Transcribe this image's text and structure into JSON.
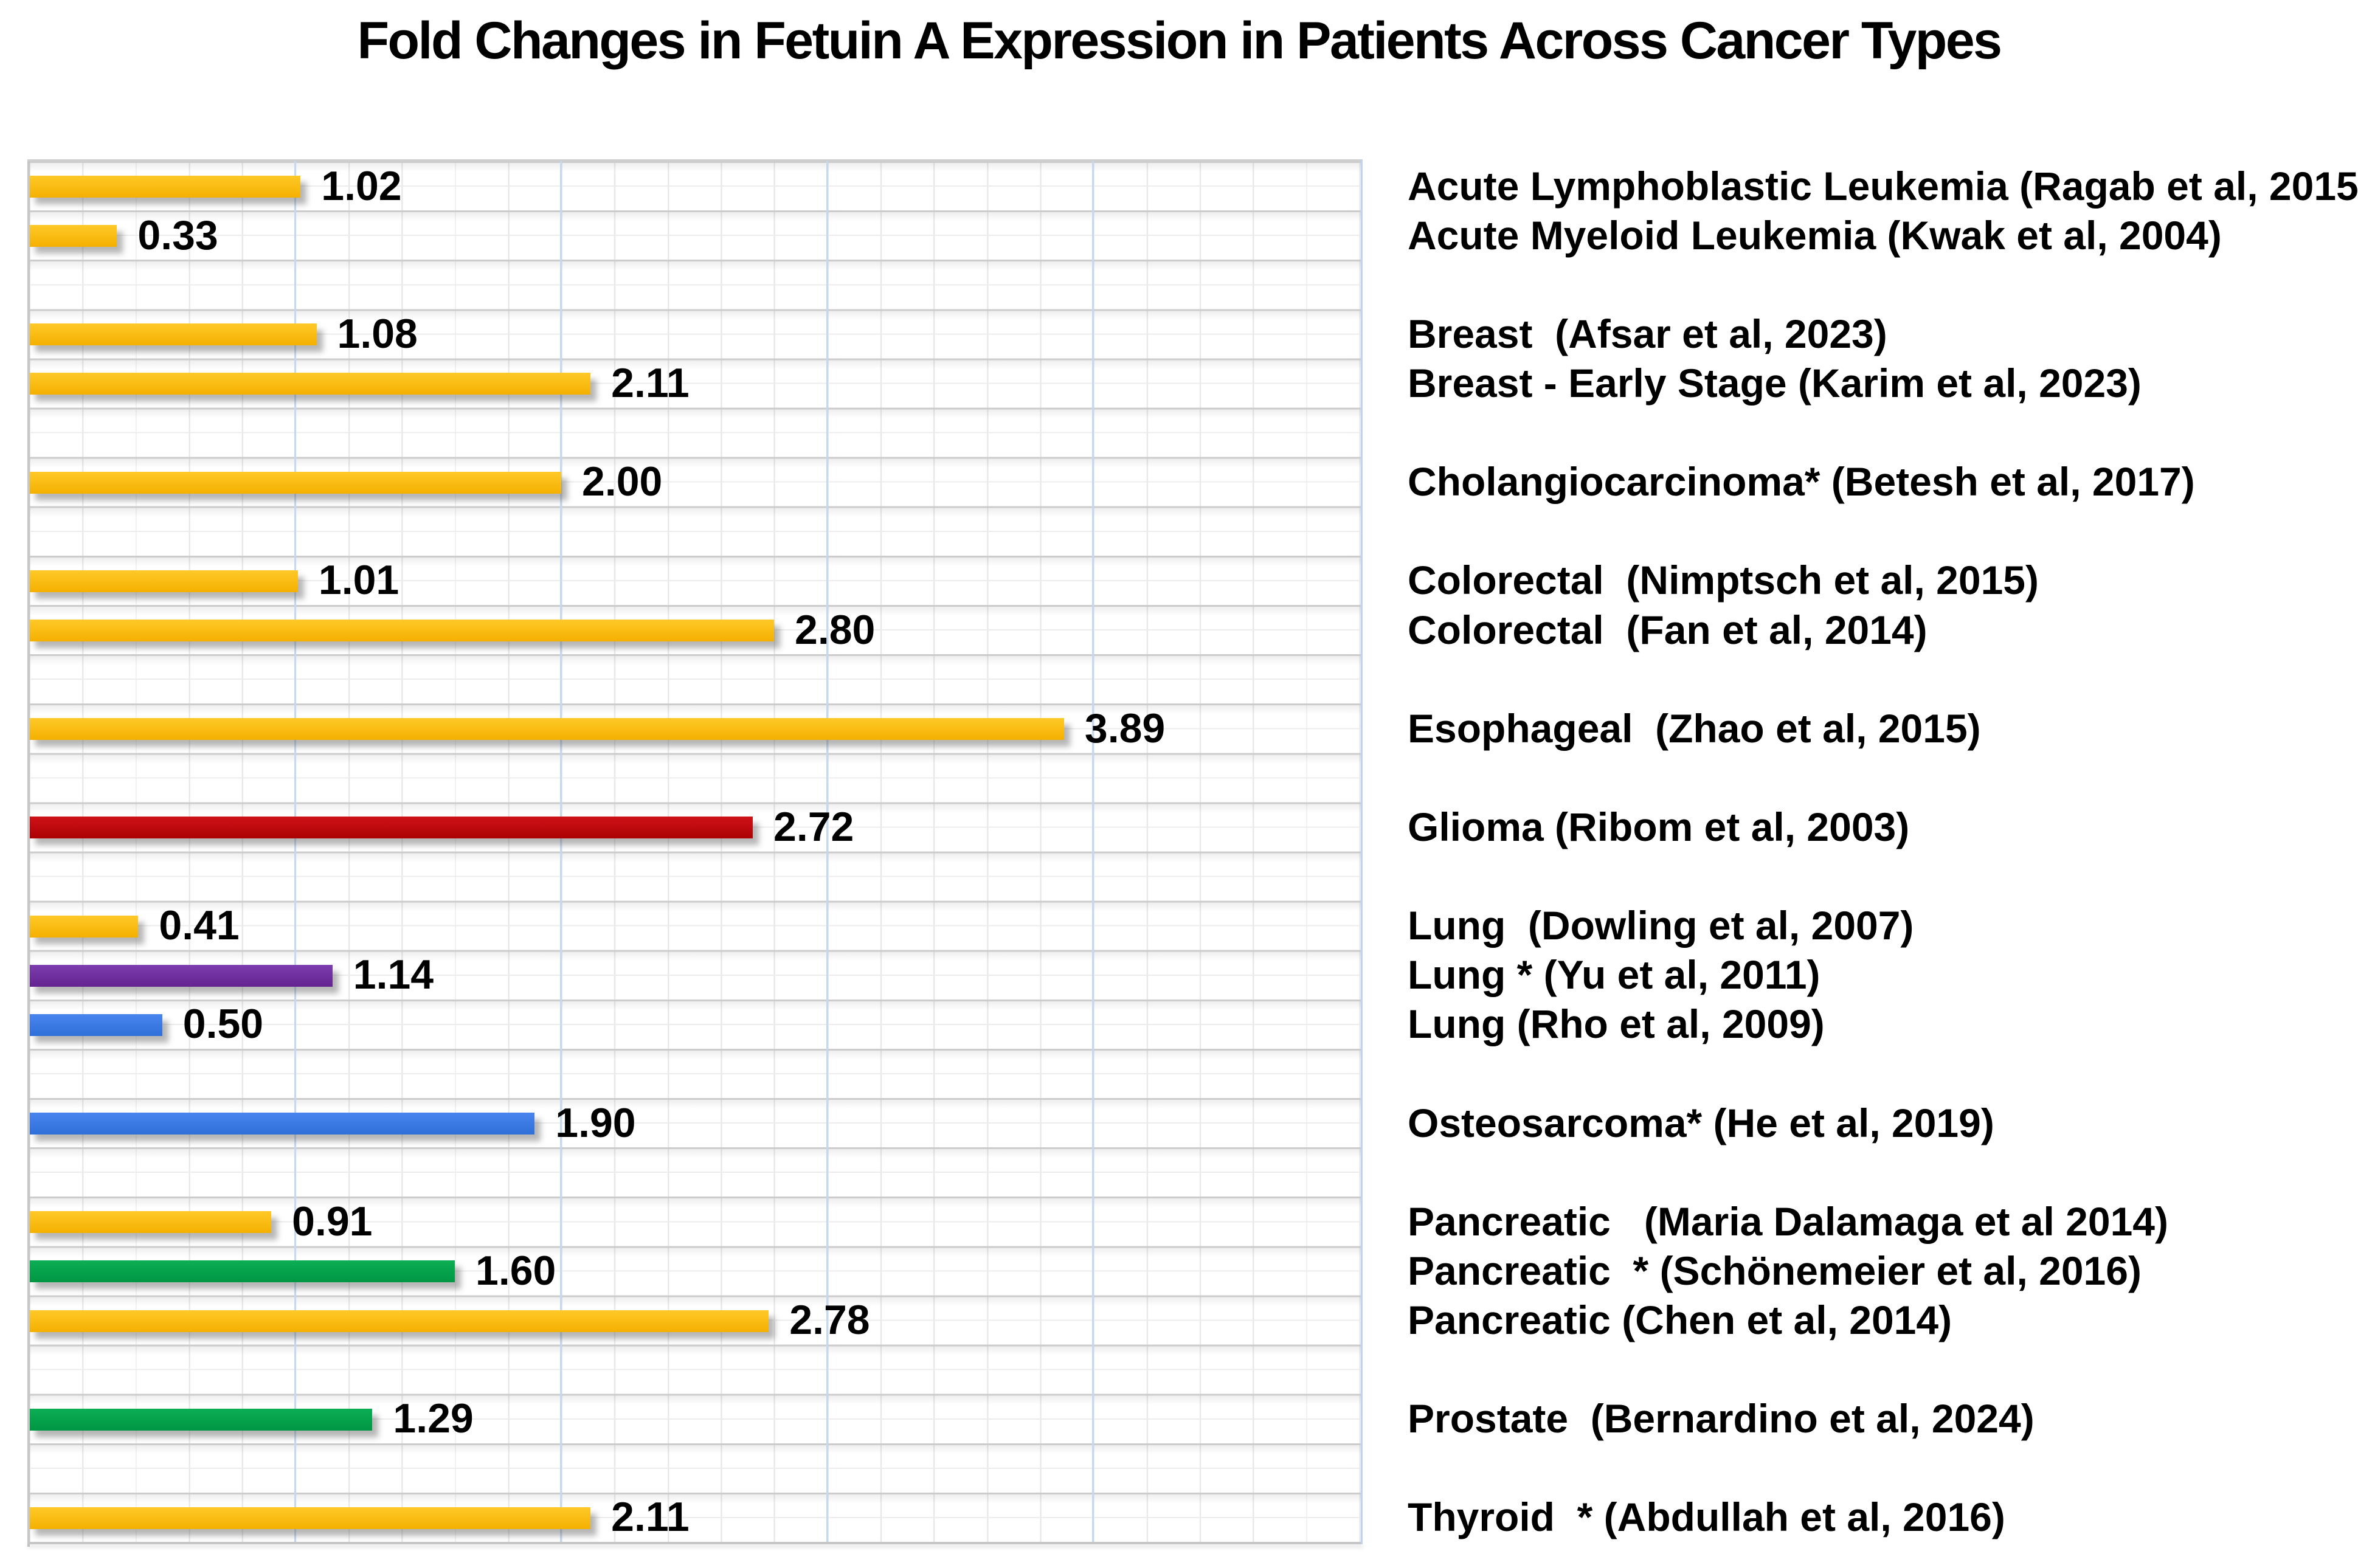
{
  "title": "Fold Changes in Fetuin A Expression in Patients Across Cancer Types",
  "palette": {
    "gold": {
      "top": "#FFC928",
      "bottom": "#F4B000"
    },
    "red": {
      "top": "#CF1317",
      "bottom": "#AB0104"
    },
    "purple": {
      "top": "#7D3EAF",
      "bottom": "#632390"
    },
    "blue": {
      "top": "#4A85EE",
      "bottom": "#2E6FD8"
    },
    "green": {
      "top": "#0CAE54",
      "bottom": "#009643"
    }
  },
  "grid_colors": {
    "fine_vertical": "#e6e6e6",
    "half_row_horizontal": "#ececec",
    "row_horizontal": "#cccccc",
    "major_vertical_blue": "#c3d9f2",
    "border": "#c6c6c6"
  },
  "chart_data": {
    "type": "bar",
    "orientation": "horizontal",
    "title": "Fold Changes in Fetuin A Expression in Patients Across Cancer Types",
    "xlabel": "",
    "ylabel": "",
    "xlim": [
      0,
      5
    ],
    "x_major_gridline_interval": 1.0,
    "x_minor_gridline_interval": 0.2,
    "major_gridline_values": [
      1,
      2,
      3,
      4
    ],
    "gridlines": "on",
    "legend": "none",
    "value_labels_shown": true,
    "axis_tick_labels_shown": false,
    "total_grid_rows": 28,
    "bars": [
      {
        "category": "Acute Lymphoblastic Leukemia (Ragab et al, 2015)",
        "value": 1.02,
        "value_label": "1.02",
        "color": "gold",
        "grid_row": 1
      },
      {
        "category": "Acute Myeloid Leukemia (Kwak et al, 2004)",
        "value": 0.33,
        "value_label": "0.33",
        "color": "gold",
        "grid_row": 2
      },
      {
        "category": "Breast  (Afsar et al, 2023)",
        "value": 1.08,
        "value_label": "1.08",
        "color": "gold",
        "grid_row": 4
      },
      {
        "category": "Breast - Early Stage (Karim et al, 2023)",
        "value": 2.11,
        "value_label": "2.11",
        "color": "gold",
        "grid_row": 5
      },
      {
        "category": "Cholangiocarcinoma* (Betesh et al, 2017)",
        "value": 2.0,
        "value_label": "2.00",
        "color": "gold",
        "grid_row": 7
      },
      {
        "category": "Colorectal  (Nimptsch et al, 2015)",
        "value": 1.01,
        "value_label": "1.01",
        "color": "gold",
        "grid_row": 9
      },
      {
        "category": "Colorectal  (Fan et al, 2014)",
        "value": 2.8,
        "value_label": "2.80",
        "color": "gold",
        "grid_row": 10
      },
      {
        "category": "Esophageal  (Zhao et al, 2015)",
        "value": 3.89,
        "value_label": "3.89",
        "color": "gold",
        "grid_row": 12
      },
      {
        "category": "Glioma (Ribom et al, 2003)",
        "value": 2.72,
        "value_label": "2.72",
        "color": "red",
        "grid_row": 14
      },
      {
        "category": "Lung  (Dowling et al, 2007)",
        "value": 0.41,
        "value_label": "0.41",
        "color": "gold",
        "grid_row": 16
      },
      {
        "category": "Lung * (Yu et al, 2011)",
        "value": 1.14,
        "value_label": "1.14",
        "color": "purple",
        "grid_row": 17
      },
      {
        "category": "Lung (Rho et al, 2009)",
        "value": 0.5,
        "value_label": "0.50",
        "color": "blue",
        "grid_row": 18
      },
      {
        "category": "Osteosarcoma* (He et al, 2019)",
        "value": 1.9,
        "value_label": "1.90",
        "color": "blue",
        "grid_row": 20
      },
      {
        "category": "Pancreatic   (Maria Dalamaga et al 2014)",
        "value": 0.91,
        "value_label": "0.91",
        "color": "gold",
        "grid_row": 22
      },
      {
        "category": "Pancreatic  * (Schönemeier et al, 2016)",
        "value": 1.6,
        "value_label": "1.60",
        "color": "green",
        "grid_row": 23
      },
      {
        "category": "Pancreatic (Chen et al, 2014)",
        "value": 2.78,
        "value_label": "2.78",
        "color": "gold",
        "grid_row": 24
      },
      {
        "category": "Prostate  (Bernardino et al, 2024)",
        "value": 1.29,
        "value_label": "1.29",
        "color": "green",
        "grid_row": 26
      },
      {
        "category": "Thyroid  * (Abdullah et al, 2016)",
        "value": 2.11,
        "value_label": "2.11",
        "color": "gold",
        "grid_row": 28
      }
    ]
  }
}
